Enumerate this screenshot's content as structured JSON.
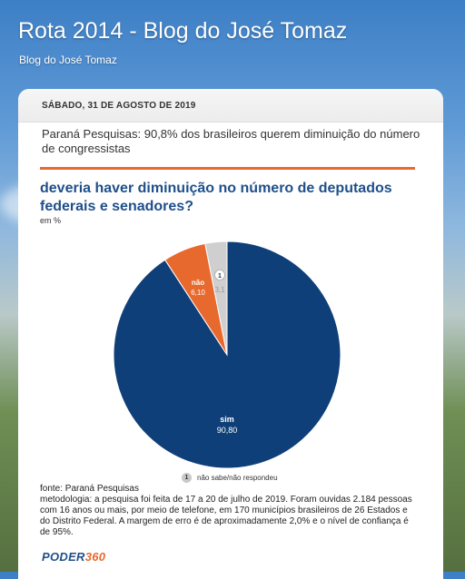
{
  "blog": {
    "title": "Rota 2014 - Blog do José Tomaz",
    "description": "Blog do José Tomaz"
  },
  "post": {
    "date": "SÁBADO, 31 DE AGOSTO DE 2019",
    "title": "Paraná Pesquisas: 90,8% dos brasileiros querem diminuição do número de congressistas"
  },
  "figure": {
    "question_line1": "deveria haver diminuição no número de deputados",
    "question_line2": "federais e senadores?",
    "units": "em %",
    "legend_badge": "1",
    "legend_text": "não sabe/não respondeu",
    "source": "fonte: Paraná Pesquisas",
    "methodology_line1": "metodologia: a pesquisa foi feita de 17 a 20 de julho de 2019. Foram ouvidas 2.184 pessoas",
    "methodology_line2": "com 16 anos ou mais, por meio de telefone, em 170 municípios brasileiros de 26 Estados e",
    "methodology_line3": "do Distrito Federal. A margem de erro é de aproximadamente 2,0% e o nível de confiança é",
    "methodology_line4": "de 95%.",
    "logo_part1": "PODER",
    "logo_part2": "360"
  },
  "colors": {
    "sim": "#0f3f78",
    "nao": "#e8692d",
    "ns": "#cfcfcf"
  },
  "chart_data": {
    "type": "pie",
    "slices": [
      {
        "label": "sim",
        "value_label": "90,80",
        "value": 90.8
      },
      {
        "label": "não",
        "value_label": "6,10",
        "value": 6.1
      },
      {
        "label": "1",
        "value_label": "3,1",
        "value": 3.1
      }
    ]
  }
}
